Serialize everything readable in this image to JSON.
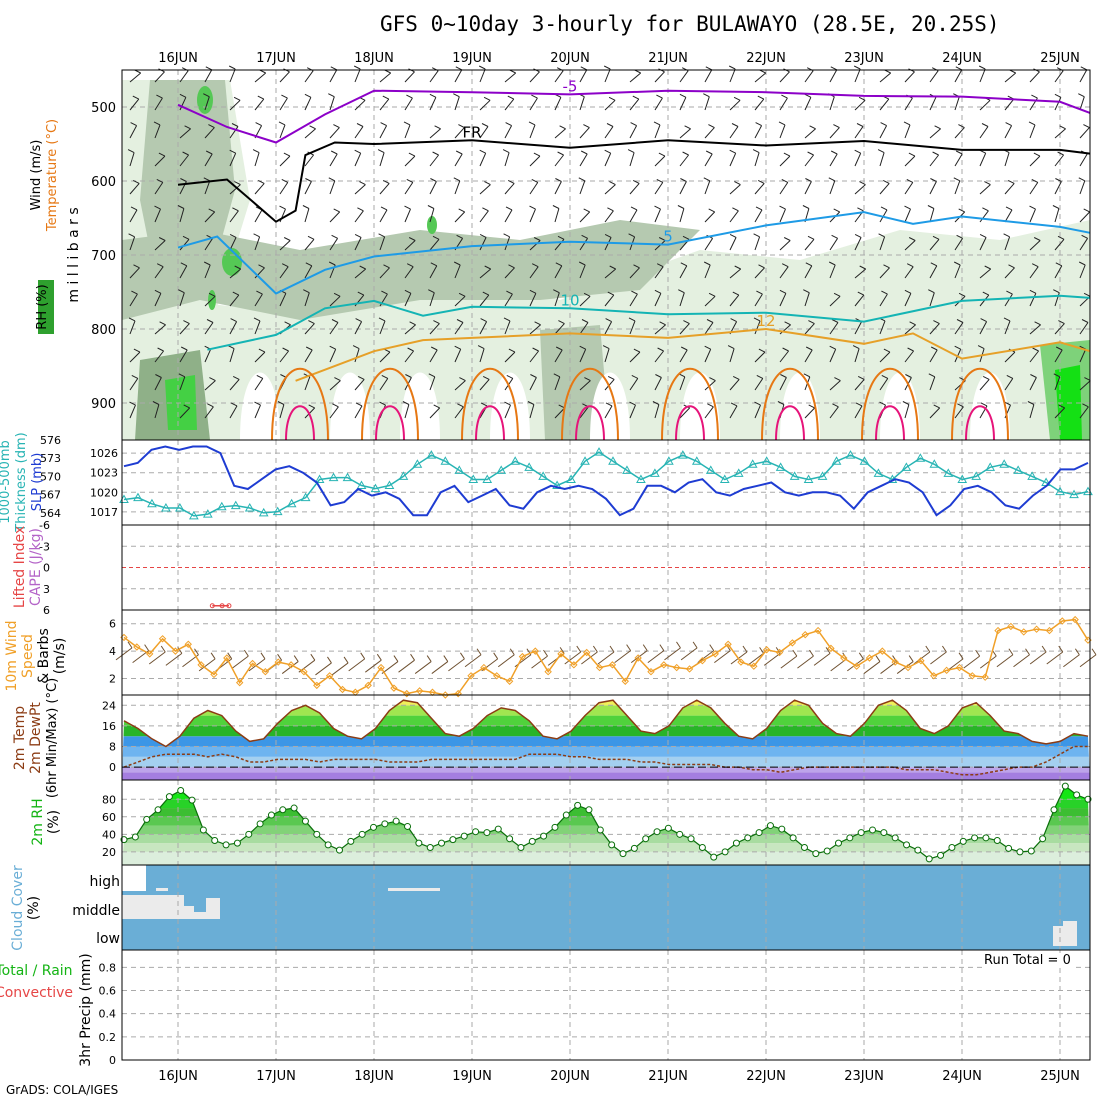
{
  "title": "GFS 0~10day 3-hourly for BULAWAYO (28.5E, 20.25S)",
  "credit": "GrADS: COLA/IGES",
  "run_total": "Run Total = 0",
  "colors": {
    "purple": "#8c00c8",
    "black": "#000000",
    "blue": "#1e9be6",
    "teal": "#14b4b4",
    "orange": "#e6a028",
    "dark_orange": "#e67814",
    "magenta": "#e6147a",
    "slp": "#1e3cd2",
    "thickness": "#28b4b4",
    "wind10m": "#f0a028",
    "rh_green": "#14b414",
    "cloud_blue": "#6aaed6"
  },
  "chart_data": [
    {
      "id": "upper_air",
      "type": "heatmap",
      "ylabel": "m i l l i b a r s",
      "left_labels": [
        "Wind (m/s)",
        "Temperature (°C)",
        "RH (%)"
      ],
      "x_ticks": [
        "16JUN",
        "17JUN",
        "18JUN",
        "19JUN",
        "20JUN",
        "21JUN",
        "22JUN",
        "23JUN",
        "24JUN",
        "25JUN"
      ],
      "y_ticks": [
        500,
        600,
        700,
        800,
        900
      ],
      "ylim": [
        450,
        950
      ],
      "isotherms": [
        {
          "label": "-5",
          "color": "#8c00c8",
          "x": [
            0,
            0.5,
            1,
            1.5,
            2,
            3,
            4,
            5,
            6,
            7,
            8,
            9,
            9.7
          ],
          "y": [
            497,
            527,
            548,
            510,
            478,
            480,
            483,
            478,
            480,
            485,
            486,
            493,
            508
          ]
        },
        {
          "label": "FR",
          "color": "#000000",
          "x": [
            0,
            0.5,
            1,
            1.2,
            1.3,
            1.6,
            2,
            3,
            4,
            5,
            6,
            7,
            8,
            9,
            9.7
          ],
          "y": [
            605,
            598,
            655,
            640,
            565,
            548,
            550,
            545,
            555,
            545,
            552,
            546,
            558,
            558,
            563
          ]
        },
        {
          "label": "5",
          "color": "#1e9be6",
          "x": [
            0,
            0.4,
            1,
            1.5,
            2,
            3,
            4,
            5,
            6,
            7,
            7.5,
            8,
            9,
            9.7
          ],
          "y": [
            690,
            675,
            752,
            720,
            702,
            688,
            682,
            686,
            660,
            642,
            658,
            648,
            662,
            670
          ]
        },
        {
          "label": "10",
          "color": "#14b4b4",
          "x": [
            0.3,
            1,
            1.5,
            2,
            2.5,
            3,
            4,
            5,
            6,
            7,
            8,
            9,
            9.7
          ],
          "y": [
            828,
            808,
            772,
            762,
            782,
            770,
            772,
            780,
            778,
            790,
            762,
            755,
            758
          ]
        },
        {
          "label": "12",
          "color": "#e6a028",
          "x": [
            1.2,
            2,
            2.5,
            3,
            4,
            5,
            6,
            7,
            7.5,
            8,
            9,
            9.7
          ],
          "y": [
            870,
            830,
            815,
            812,
            806,
            812,
            800,
            820,
            806,
            840,
            818,
            830
          ]
        }
      ],
      "rh_levels": [
        30,
        50,
        70,
        90
      ]
    },
    {
      "id": "thickness_slp",
      "type": "line",
      "left_labels": [
        "1000-500mb",
        "Thickness (dm)",
        "SLP (mb)"
      ],
      "y_ticks_left": [
        564,
        567,
        570,
        573,
        576
      ],
      "y_ticks_right": [
        1017,
        1020,
        1023,
        1026
      ],
      "ylim_left": [
        562,
        576
      ],
      "ylim_right": [
        1015,
        1028
      ],
      "series": [
        {
          "name": "1000-500mb Thickness (dm)",
          "axis": "left",
          "values": [
            566.2,
            566.5,
            565.5,
            564.8,
            564.8,
            563.5,
            563.8,
            565,
            565.2,
            564.8,
            564,
            564.2,
            565.5,
            566.5,
            569.5,
            569.8,
            569.8,
            568.5,
            568,
            568.5,
            570,
            572,
            573.5,
            572.5,
            571,
            569.5,
            569.5,
            571,
            572.5,
            571.5,
            570,
            568.5,
            569.5,
            572.5,
            574,
            572.5,
            571,
            569.5,
            570.5,
            572.5,
            573.5,
            572.5,
            571,
            569.5,
            570.5,
            572,
            572.5,
            571.5,
            570,
            569.5,
            570,
            572.5,
            573.5,
            572.5,
            570.5,
            569.5,
            571.5,
            573,
            572,
            570.5,
            569.5,
            570,
            571.5,
            572,
            571,
            570,
            569,
            567.5,
            567,
            567.5
          ]
        },
        {
          "name": "SLP (mb)",
          "axis": "right",
          "values": [
            1024,
            1024.5,
            1026.5,
            1027,
            1026.5,
            1027,
            1027,
            1026,
            1021,
            1020.5,
            1022,
            1023.5,
            1024,
            1023,
            1021.5,
            1018,
            1018.5,
            1020.5,
            1019.5,
            1020,
            1019,
            1016.5,
            1016.5,
            1020,
            1021,
            1018.5,
            1019.5,
            1020.5,
            1018,
            1017.5,
            1020,
            1021,
            1020.5,
            1021,
            1020.5,
            1019,
            1016.5,
            1017.5,
            1021,
            1021,
            1020,
            1021.5,
            1022,
            1020,
            1019.5,
            1020.5,
            1021,
            1021.5,
            1020,
            1019.5,
            1020,
            1020,
            1019.5,
            1017.5,
            1020,
            1021,
            1022,
            1021.5,
            1020,
            1016.5,
            1018,
            1020.5,
            1021,
            1020,
            1018,
            1017.5,
            1019.5,
            1021,
            1023.5,
            1023.5,
            1024.5
          ]
        }
      ]
    },
    {
      "id": "lifted_cape",
      "type": "line",
      "left_labels": [
        "Lifted Index",
        "CAPE (J/kg)"
      ],
      "y_ticks": [
        6,
        3,
        0,
        -3,
        -6
      ],
      "ylim": [
        -6,
        6
      ],
      "series": [
        {
          "name": "Lifted Index",
          "values": [
            5.4,
            5.4,
            5.4
          ],
          "x": [
            0.35,
            0.45,
            0.52
          ]
        }
      ]
    },
    {
      "id": "wind10m",
      "type": "line",
      "left_labels": [
        "10m Wind",
        "Speed",
        "& Barbs",
        "(m/s)"
      ],
      "y_ticks": [
        2,
        4,
        6
      ],
      "ylim": [
        0.8,
        7
      ],
      "series": [
        {
          "name": "10m Wind Speed",
          "values": [
            5.0,
            4.3,
            3.8,
            4.9,
            4.0,
            4.5,
            3.0,
            2.3,
            3.5,
            1.7,
            3.1,
            2.5,
            3.2,
            3.0,
            2.5,
            1.5,
            2.2,
            1.2,
            1.0,
            1.5,
            2.8,
            1.3,
            0.9,
            1.1,
            1.0,
            0.8,
            0.9,
            2.2,
            2.8,
            2.2,
            1.8,
            3.6,
            4.0,
            2.5,
            3.8,
            3.0,
            3.9,
            2.8,
            3.0,
            1.8,
            3.5,
            2.5,
            3.0,
            2.8,
            2.7,
            3.3,
            3.8,
            4.5,
            3.2,
            2.9,
            4.1,
            3.9,
            4.6,
            5.2,
            5.5,
            4.2,
            3.5,
            2.9,
            3.5,
            4.0,
            3.2,
            2.8,
            3.3,
            2.2,
            2.6,
            2.8,
            2.2,
            2.1,
            5.5,
            5.8,
            5.4,
            5.6,
            5.5,
            6.2,
            6.3,
            4.8
          ]
        },
        {
          "name": "10m Wind Barbs",
          "values": [
            3.8,
            3.6,
            3.5,
            3.4,
            3.3,
            3.0,
            3.0,
            3.2,
            3.0,
            2.9,
            2.8,
            2.9,
            2.7,
            2.7,
            3.0,
            2.9,
            2.8,
            2.9,
            2.8,
            2.8,
            3.0,
            3.3,
            3.0,
            3.3,
            3.3,
            3.2,
            3.4,
            3.5,
            3.5,
            3.5,
            3.6,
            3.6,
            3.6,
            3.8,
            3.8,
            3.6,
            3.6,
            3.5,
            3.4,
            3.4,
            3.2,
            3.2,
            3.4,
            3.0,
            3.0,
            2.8,
            2.8,
            2.8,
            3.5,
            3.5,
            3.0,
            3.2,
            3.2,
            3.3,
            3.3,
            3.5,
            3.5,
            3.3,
            3.3
          ]
        }
      ]
    },
    {
      "id": "temp2m",
      "type": "area",
      "left_labels": [
        "2m Temp",
        "2m DewPt",
        "(6hr Min/Max) (°C)"
      ],
      "y_ticks": [
        0,
        8,
        16,
        24
      ],
      "ylim": [
        -5,
        28
      ],
      "series": [
        {
          "name": "2m Temp",
          "values": [
            18,
            15,
            11,
            8,
            12,
            19,
            22,
            20,
            14,
            10,
            11,
            17,
            22,
            24,
            21,
            15,
            12,
            11,
            15,
            22,
            26,
            25,
            19,
            13,
            12,
            15,
            20,
            23,
            22,
            18,
            12,
            11,
            14,
            20,
            25,
            26,
            20,
            14,
            13,
            16,
            23,
            26,
            23,
            17,
            12,
            11,
            15,
            22,
            26,
            24,
            17,
            13,
            12,
            17,
            24,
            26,
            22,
            15,
            13,
            16,
            23,
            25,
            20,
            14,
            13,
            10,
            9,
            10,
            13,
            12
          ]
        },
        {
          "name": "2m DewPt",
          "values": [
            0,
            2,
            4,
            5,
            5,
            5,
            4,
            5,
            4,
            2,
            2,
            3,
            3,
            3,
            2,
            3,
            3,
            3,
            3,
            2,
            2,
            2,
            3,
            3,
            3,
            3,
            3,
            3,
            3,
            5,
            5,
            5,
            4,
            4,
            3,
            3,
            3,
            2,
            2,
            1,
            1,
            1,
            1,
            0,
            0,
            -1,
            -1,
            -2,
            -1,
            0,
            0,
            0,
            0,
            0,
            0,
            0,
            -1,
            -1,
            -1,
            -2,
            -3,
            -3,
            -2,
            -1,
            0,
            0,
            2,
            5,
            8,
            8
          ]
        }
      ]
    },
    {
      "id": "rh2m",
      "type": "area",
      "left_labels": [
        "2m RH",
        "(%)"
      ],
      "y_ticks": [
        20,
        40,
        60,
        80
      ],
      "ylim": [
        5,
        102
      ],
      "series": [
        {
          "name": "2m RH",
          "values": [
            34,
            37,
            57,
            68,
            83,
            90,
            79,
            45,
            33,
            28,
            30,
            40,
            52,
            62,
            68,
            70,
            55,
            40,
            28,
            22,
            32,
            40,
            48,
            52,
            55,
            49,
            30,
            25,
            30,
            34,
            38,
            43,
            42,
            46,
            35,
            25,
            32,
            38,
            48,
            62,
            73,
            68,
            45,
            28,
            18,
            24,
            35,
            43,
            47,
            40,
            35,
            25,
            14,
            20,
            30,
            36,
            42,
            50,
            46,
            36,
            25,
            18,
            21,
            30,
            36,
            42,
            45,
            42,
            36,
            28,
            22,
            12,
            16,
            25,
            32,
            36,
            36,
            33,
            24,
            20,
            21,
            35,
            68,
            95,
            85,
            80
          ]
        }
      ]
    },
    {
      "id": "cloud_cover",
      "type": "heatmap",
      "left_labels": [
        "Cloud Cover",
        "(%)"
      ],
      "y_ticks": [
        "high",
        "middle",
        "low"
      ]
    },
    {
      "id": "precip",
      "type": "bar",
      "left_labels": [
        "Total / Rain",
        "Convective",
        "3hr Precip (mm)"
      ],
      "y_ticks": [
        0,
        0.2,
        0.4,
        0.6,
        0.8
      ],
      "ylim": [
        0,
        0.95
      ],
      "x_ticks": [
        "16JUN",
        "17JUN",
        "18JUN",
        "19JUN",
        "20JUN",
        "21JUN",
        "22JUN",
        "23JUN",
        "24JUN",
        "25JUN"
      ],
      "values": []
    }
  ]
}
